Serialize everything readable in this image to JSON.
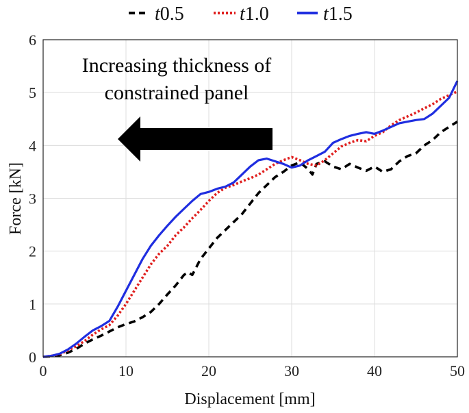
{
  "chart_data": {
    "type": "line",
    "xlabel": "Displacement [mm]",
    "ylabel": "Force [kN]",
    "xlim": [
      0,
      50
    ],
    "ylim": [
      0,
      6
    ],
    "xticks": [
      0,
      10,
      20,
      30,
      40,
      50
    ],
    "yticks": [
      0,
      1,
      2,
      3,
      4,
      5,
      6
    ],
    "grid": true,
    "legend_position": "top-center",
    "annotation": {
      "line1": "Increasing thickness of",
      "line2": "constrained panel",
      "arrow_direction": "left"
    },
    "series": [
      {
        "name": "t0.5",
        "name_italic": "t",
        "name_suffix": "0.5",
        "color": "#000000",
        "style": "dashed",
        "x": [
          0,
          1,
          2,
          3,
          4,
          5,
          6,
          7,
          8,
          9,
          10,
          11,
          12,
          13,
          14,
          15,
          16,
          17,
          17.5,
          18,
          19,
          20,
          21,
          22,
          23,
          24,
          25,
          26,
          27,
          28,
          29,
          30,
          31,
          32,
          32.5,
          33,
          34,
          35,
          36,
          37,
          38,
          39,
          40,
          41,
          42,
          43,
          44,
          45,
          46,
          47,
          48,
          49,
          50
        ],
        "y": [
          0,
          0.01,
          0.03,
          0.08,
          0.15,
          0.25,
          0.33,
          0.4,
          0.48,
          0.56,
          0.62,
          0.67,
          0.75,
          0.85,
          1.0,
          1.18,
          1.35,
          1.55,
          1.6,
          1.55,
          1.85,
          2.05,
          2.25,
          2.4,
          2.55,
          2.7,
          2.9,
          3.1,
          3.25,
          3.4,
          3.5,
          3.62,
          3.68,
          3.55,
          3.45,
          3.65,
          3.7,
          3.6,
          3.55,
          3.65,
          3.58,
          3.52,
          3.6,
          3.5,
          3.55,
          3.7,
          3.8,
          3.85,
          4.0,
          4.1,
          4.25,
          4.35,
          4.45
        ]
      },
      {
        "name": "t1.0",
        "name_italic": "t",
        "name_suffix": "1.0",
        "color": "#e0201f",
        "style": "dotted",
        "x": [
          0,
          1,
          2,
          3,
          4,
          5,
          6,
          7,
          8,
          9,
          10,
          11,
          12,
          13,
          14,
          15,
          16,
          17,
          18,
          19,
          20,
          21,
          22,
          23,
          24,
          25,
          26,
          27,
          28,
          29,
          30,
          31,
          32,
          33,
          34,
          35,
          36,
          37,
          38,
          39,
          40,
          41,
          42,
          43,
          44,
          45,
          46,
          47,
          48,
          49,
          50
        ],
        "y": [
          0,
          0.02,
          0.05,
          0.12,
          0.2,
          0.3,
          0.42,
          0.52,
          0.6,
          0.78,
          1.0,
          1.25,
          1.5,
          1.75,
          1.95,
          2.1,
          2.3,
          2.45,
          2.62,
          2.78,
          2.95,
          3.1,
          3.2,
          3.25,
          3.32,
          3.38,
          3.45,
          3.55,
          3.65,
          3.72,
          3.78,
          3.72,
          3.65,
          3.62,
          3.72,
          3.85,
          3.98,
          4.05,
          4.1,
          4.08,
          4.18,
          4.25,
          4.38,
          4.48,
          4.55,
          4.62,
          4.7,
          4.78,
          4.88,
          4.95,
          5.02
        ]
      },
      {
        "name": "t1.5",
        "name_italic": "t",
        "name_suffix": "1.5",
        "color": "#1f2ee0",
        "style": "solid",
        "x": [
          0,
          1,
          2,
          3,
          4,
          5,
          6,
          7,
          8,
          9,
          10,
          11,
          12,
          13,
          14,
          15,
          16,
          17,
          18,
          19,
          20,
          21,
          22,
          23,
          24,
          25,
          26,
          27,
          28,
          29,
          30,
          31,
          32,
          33,
          34,
          35,
          36,
          37,
          38,
          39,
          40,
          41,
          42,
          43,
          44,
          45,
          46,
          47,
          48,
          49,
          50
        ],
        "y": [
          0,
          0.02,
          0.06,
          0.14,
          0.25,
          0.38,
          0.5,
          0.58,
          0.68,
          0.95,
          1.25,
          1.55,
          1.85,
          2.1,
          2.3,
          2.48,
          2.65,
          2.8,
          2.95,
          3.08,
          3.12,
          3.18,
          3.22,
          3.3,
          3.45,
          3.6,
          3.72,
          3.75,
          3.7,
          3.65,
          3.58,
          3.62,
          3.72,
          3.8,
          3.88,
          4.05,
          4.12,
          4.18,
          4.22,
          4.25,
          4.22,
          4.28,
          4.35,
          4.42,
          4.45,
          4.48,
          4.5,
          4.6,
          4.75,
          4.9,
          5.22
        ]
      }
    ]
  }
}
